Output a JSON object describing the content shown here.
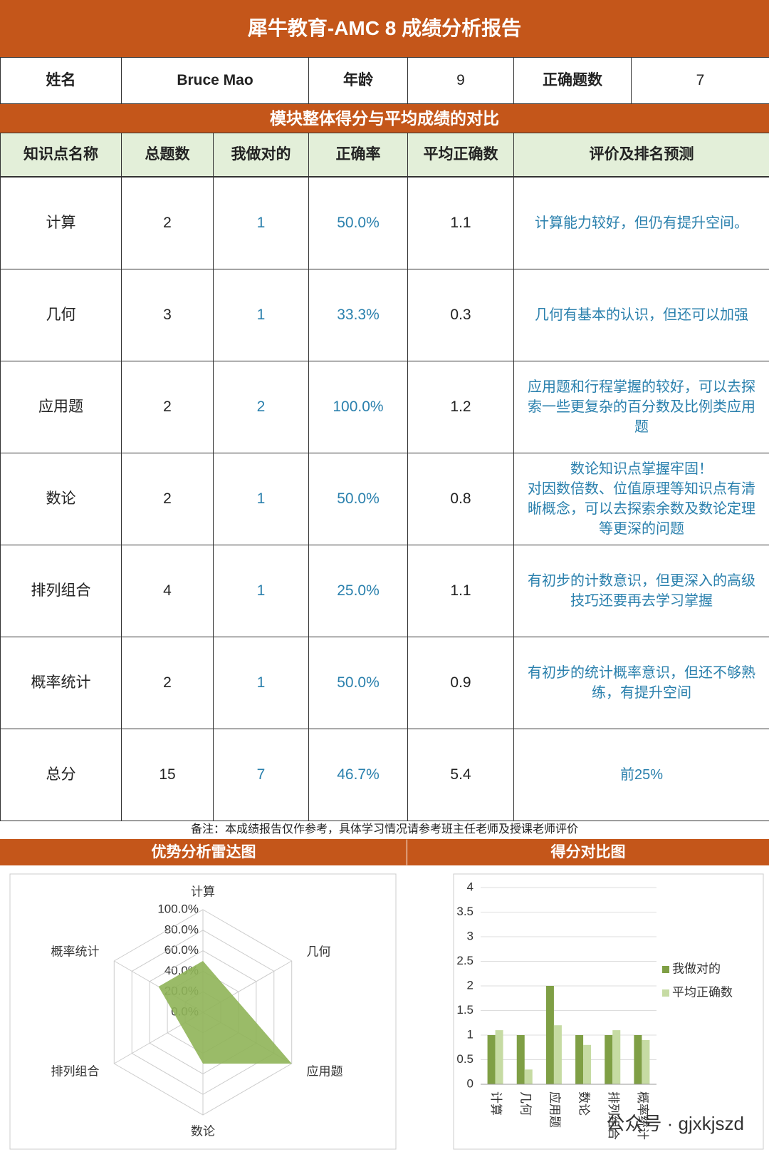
{
  "header": {
    "title": "犀牛教育-AMC 8 成绩分析报告"
  },
  "info": {
    "name_label": "姓名",
    "name": "Bruce Mao",
    "age_label": "年龄",
    "age": 9,
    "correct_label": "正确题数",
    "correct": 7
  },
  "section_title": "模块整体得分与平均成绩的对比",
  "table": {
    "columns": [
      "知识点名称",
      "总题数",
      "我做对的",
      "正确率",
      "平均正确数",
      "评价及排名预测"
    ],
    "rows": [
      [
        "计算",
        2,
        1,
        "50.0%",
        1.1,
        "计算能力较好，但仍有提升空间。"
      ],
      [
        "几何",
        3,
        1,
        "33.3%",
        0.3,
        "几何有基本的认识，但还可以加强"
      ],
      [
        "应用题",
        2,
        2,
        "100.0%",
        1.2,
        "应用题和行程掌握的较好，可以去探索一些更复杂的百分数及比例类应用题"
      ],
      [
        "数论",
        2,
        1,
        "50.0%",
        0.8,
        "数论知识点掌握牢固！\n对因数倍数、位值原理等知识点有清晰概念，可以去探索余数及数论定理等更深的问题"
      ],
      [
        "排列组合",
        4,
        1,
        "25.0%",
        1.1,
        "有初步的计数意识，但更深入的高级技巧还要再去学习掌握"
      ],
      [
        "概率统计",
        2,
        1,
        "50.0%",
        0.9,
        "有初步的统计概率意识，但还不够熟练，有提升空间"
      ],
      [
        "总分",
        15,
        7,
        "46.7%",
        5.4,
        "前25%"
      ]
    ]
  },
  "note": "备注：本成绩报告仅作参考，具体学习情况请参考班主任老师及授课老师评价",
  "chart_titles": [
    "优势分析雷达图",
    "得分对比图"
  ],
  "watermark": "公众号 · gjxkjszd",
  "chart_data": [
    {
      "type": "radar",
      "categories": [
        "计算",
        "几何",
        "应用题",
        "数论",
        "排列组合",
        "概率统计"
      ],
      "values": [
        50,
        33.3,
        100,
        50,
        25,
        50
      ],
      "color": "#8fb458",
      "rlim": [
        0,
        100
      ],
      "rticks": [
        {
          "value": 0,
          "label": "0.0%"
        },
        {
          "value": 20,
          "label": "20.0%"
        },
        {
          "value": 40,
          "label": "40.0%"
        },
        {
          "value": 60,
          "label": "60.0%"
        },
        {
          "value": 80,
          "label": "80.0%"
        },
        {
          "value": 100,
          "label": "100.0%"
        }
      ]
    },
    {
      "type": "bar",
      "categories": [
        "计算",
        "几何",
        "应用题",
        "数论",
        "排列组合",
        "概率统计"
      ],
      "series": [
        {
          "name": "我做对的",
          "color": "#7f9f45",
          "values": [
            1,
            1,
            2,
            1,
            1,
            1
          ]
        },
        {
          "name": "平均正确数",
          "color": "#c6dba3",
          "values": [
            1.1,
            0.3,
            1.2,
            0.8,
            1.1,
            0.9
          ]
        }
      ],
      "ylim": [
        0,
        4
      ],
      "yticks": [
        0,
        0.5,
        1,
        1.5,
        2,
        2.5,
        3,
        3.5,
        4
      ],
      "grid": true,
      "legend": "right"
    }
  ]
}
